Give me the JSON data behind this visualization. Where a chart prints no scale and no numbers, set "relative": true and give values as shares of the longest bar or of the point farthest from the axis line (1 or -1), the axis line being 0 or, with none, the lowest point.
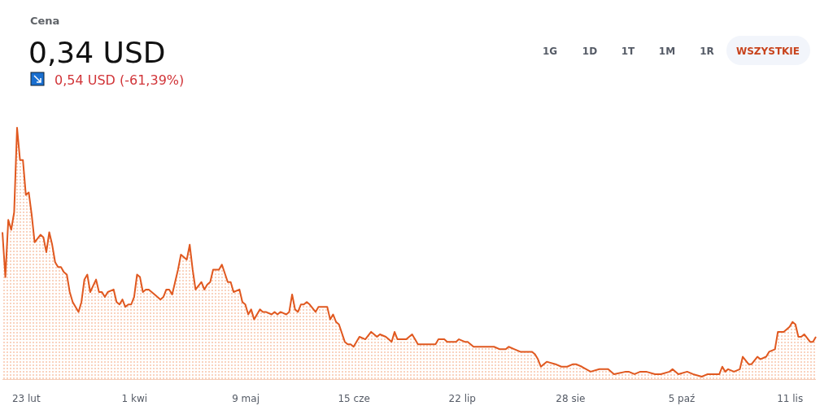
{
  "chart_data": {
    "type": "area",
    "title": "Cena",
    "subtitle": "0,34 USD",
    "annotations": [
      "0,54 USD (-61,39%)",
      "1G",
      "1D",
      "1T",
      "1M",
      "1R",
      "WSZYSTKIE"
    ],
    "relative": true,
    "xlim": [
      "--02-15",
      "--11-20"
    ],
    "xticks": [
      {
        "value": "--02-23",
        "label": "23 lut"
      },
      {
        "value": "--04-01",
        "label": "1 kwi"
      },
      {
        "value": "--05-09",
        "label": "9 maj"
      },
      {
        "value": "--06-15",
        "label": "15 cze"
      },
      {
        "value": "--07-22",
        "label": "22 lip"
      },
      {
        "value": "--08-28",
        "label": "28 sie"
      },
      {
        "value": "--10-05",
        "label": "5 paź"
      },
      {
        "value": "--11-11",
        "label": "11 lis"
      }
    ],
    "x": [
      "--02-15",
      "--02-16",
      "--02-17",
      "--02-18",
      "--02-19",
      "--02-20",
      "--02-21",
      "--02-22",
      "--02-23",
      "--02-24",
      "--02-25",
      "--02-26",
      "--02-28",
      "--03-01",
      "--03-02",
      "--03-03",
      "--03-04",
      "--03-05",
      "--03-06",
      "--03-07",
      "--03-08",
      "--03-09",
      "--03-10",
      "--03-11",
      "--03-13",
      "--03-14",
      "--03-15",
      "--03-16",
      "--03-17",
      "--03-19",
      "--03-20",
      "--03-21",
      "--03-22",
      "--03-23",
      "--03-25",
      "--03-26",
      "--03-27",
      "--03-28",
      "--03-29",
      "--03-30",
      "--03-31",
      "--04-01",
      "--04-02",
      "--04-03",
      "--04-04",
      "--04-05",
      "--04-06",
      "--04-08",
      "--04-10",
      "--04-11",
      "--04-12",
      "--04-13",
      "--04-14",
      "--04-15",
      "--04-16",
      "--04-17",
      "--04-19",
      "--04-20",
      "--04-21",
      "--04-22",
      "--04-24",
      "--04-25",
      "--04-26",
      "--04-27",
      "--04-28",
      "--04-30",
      "--05-01",
      "--05-03",
      "--05-04",
      "--05-05",
      "--05-07",
      "--05-08",
      "--05-09",
      "--05-10",
      "--05-11",
      "--05-12",
      "--05-13",
      "--05-14",
      "--05-15",
      "--05-16",
      "--05-18",
      "--05-19",
      "--05-20",
      "--05-21",
      "--05-23",
      "--05-24",
      "--05-25",
      "--05-26",
      "--05-27",
      "--05-28",
      "--05-29",
      "--05-30",
      "--05-31",
      "--06-02",
      "--06-03",
      "--06-05",
      "--06-06",
      "--06-07",
      "--06-08",
      "--06-09",
      "--06-10",
      "--06-12",
      "--06-13",
      "--06-14",
      "--06-15",
      "--06-17",
      "--06-19",
      "--06-21",
      "--06-22",
      "--06-23",
      "--06-24",
      "--06-26",
      "--06-27",
      "--06-28",
      "--06-29",
      "--06-30",
      "--07-02",
      "--07-03",
      "--07-05",
      "--07-06",
      "--07-07",
      "--07-09",
      "--07-11",
      "--07-13",
      "--07-14",
      "--07-16",
      "--07-17",
      "--07-19",
      "--07-20",
      "--07-21",
      "--07-23",
      "--07-24",
      "--07-26",
      "--07-28",
      "--07-30",
      "--08-01",
      "--08-02",
      "--08-04",
      "--08-06",
      "--08-07",
      "--08-09",
      "--08-11",
      "--08-15",
      "--08-16",
      "--08-17",
      "--08-18",
      "--08-20",
      "--08-23",
      "--08-25",
      "--08-27",
      "--08-29",
      "--08-30",
      "--09-01",
      "--09-04",
      "--09-07",
      "--09-10",
      "--09-12",
      "--09-16",
      "--09-17",
      "--09-19",
      "--09-21",
      "--09-23",
      "--09-26",
      "--09-28",
      "--10-01",
      "--10-02",
      "--10-04",
      "--10-07",
      "--10-09",
      "--10-12",
      "--10-14",
      "--10-17",
      "--10-18",
      "--10-19",
      "--10-20",
      "--10-21",
      "--10-23",
      "--10-25",
      "--10-26",
      "--10-28",
      "--10-29",
      "--10-31",
      "--11-01",
      "--11-03",
      "--11-04",
      "--11-06",
      "--11-07",
      "--11-09",
      "--11-11",
      "--11-12",
      "--11-13",
      "--11-14",
      "--11-15",
      "--11-16",
      "--11-18",
      "--11-19",
      "--11-20"
    ],
    "series": [
      {
        "color": "#e0581f",
        "values": [
          0.58,
          0.4,
          0.63,
          0.59,
          0.66,
          1.0,
          0.87,
          0.87,
          0.73,
          0.74,
          0.65,
          0.54,
          0.57,
          0.56,
          0.5,
          0.58,
          0.53,
          0.46,
          0.44,
          0.44,
          0.42,
          0.41,
          0.34,
          0.3,
          0.26,
          0.3,
          0.39,
          0.41,
          0.34,
          0.39,
          0.34,
          0.34,
          0.32,
          0.34,
          0.35,
          0.3,
          0.29,
          0.31,
          0.28,
          0.29,
          0.29,
          0.32,
          0.41,
          0.4,
          0.34,
          0.35,
          0.35,
          0.33,
          0.31,
          0.32,
          0.35,
          0.35,
          0.33,
          0.38,
          0.43,
          0.49,
          0.47,
          0.53,
          0.43,
          0.35,
          0.38,
          0.35,
          0.37,
          0.38,
          0.43,
          0.43,
          0.45,
          0.38,
          0.38,
          0.34,
          0.35,
          0.3,
          0.29,
          0.25,
          0.27,
          0.23,
          0.25,
          0.27,
          0.26,
          0.26,
          0.25,
          0.26,
          0.25,
          0.26,
          0.25,
          0.26,
          0.33,
          0.27,
          0.26,
          0.29,
          0.29,
          0.3,
          0.29,
          0.26,
          0.28,
          0.28,
          0.28,
          0.23,
          0.25,
          0.22,
          0.21,
          0.14,
          0.13,
          0.13,
          0.12,
          0.16,
          0.15,
          0.18,
          0.17,
          0.16,
          0.17,
          0.16,
          0.15,
          0.14,
          0.18,
          0.15,
          0.15,
          0.15,
          0.17,
          0.15,
          0.13,
          0.13,
          0.13,
          0.13,
          0.15,
          0.15,
          0.14,
          0.14,
          0.14,
          0.15,
          0.14,
          0.14,
          0.12,
          0.12,
          0.12,
          0.12,
          0.12,
          0.11,
          0.11,
          0.12,
          0.11,
          0.1,
          0.1,
          0.09,
          0.07,
          0.04,
          0.06,
          0.05,
          0.04,
          0.04,
          0.05,
          0.05,
          0.04,
          0.02,
          0.03,
          0.03,
          0.01,
          0.02,
          0.02,
          0.01,
          0.02,
          0.02,
          0.01,
          0.01,
          0.02,
          0.03,
          0.01,
          0.02,
          0.01,
          0.0,
          0.01,
          0.01,
          0.01,
          0.04,
          0.02,
          0.03,
          0.02,
          0.03,
          0.08,
          0.05,
          0.05,
          0.08,
          0.07,
          0.08,
          0.1,
          0.11,
          0.18,
          0.18,
          0.2,
          0.22,
          0.21,
          0.16,
          0.16,
          0.17,
          0.14,
          0.14,
          0.16
        ]
      }
    ]
  }
}
